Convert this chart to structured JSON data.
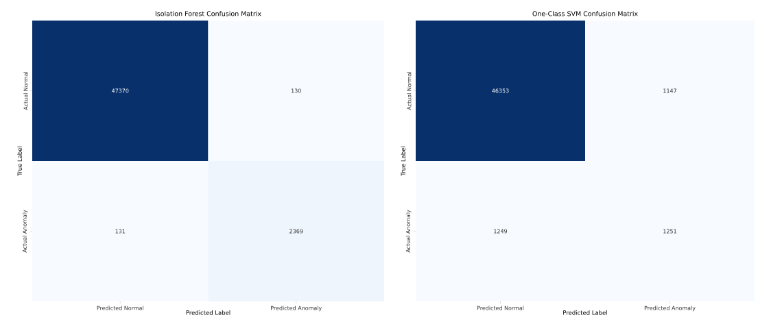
{
  "chart_data": [
    {
      "type": "heatmap",
      "title": "Isolation Forest Confusion Matrix",
      "xlabel": "Predicted Label",
      "ylabel": "True Label",
      "categories": [
        "Predicted Normal",
        "Predicted Anomaly"
      ],
      "y_categories": [
        "Actual Normal",
        "Actual Anomaly"
      ],
      "cells": [
        [
          47370,
          130
        ],
        [
          131,
          2369
        ]
      ],
      "data_labels": true
    },
    {
      "type": "heatmap",
      "title": "One-Class SVM Confusion Matrix",
      "xlabel": "Predicted Label",
      "ylabel": "True Label",
      "categories": [
        "Predicted Normal",
        "Predicted Anomaly"
      ],
      "y_categories": [
        "Actual Normal",
        "Actual Anomaly"
      ],
      "cells": [
        [
          46353,
          1147
        ],
        [
          1249,
          1251
        ]
      ],
      "data_labels": true
    }
  ]
}
